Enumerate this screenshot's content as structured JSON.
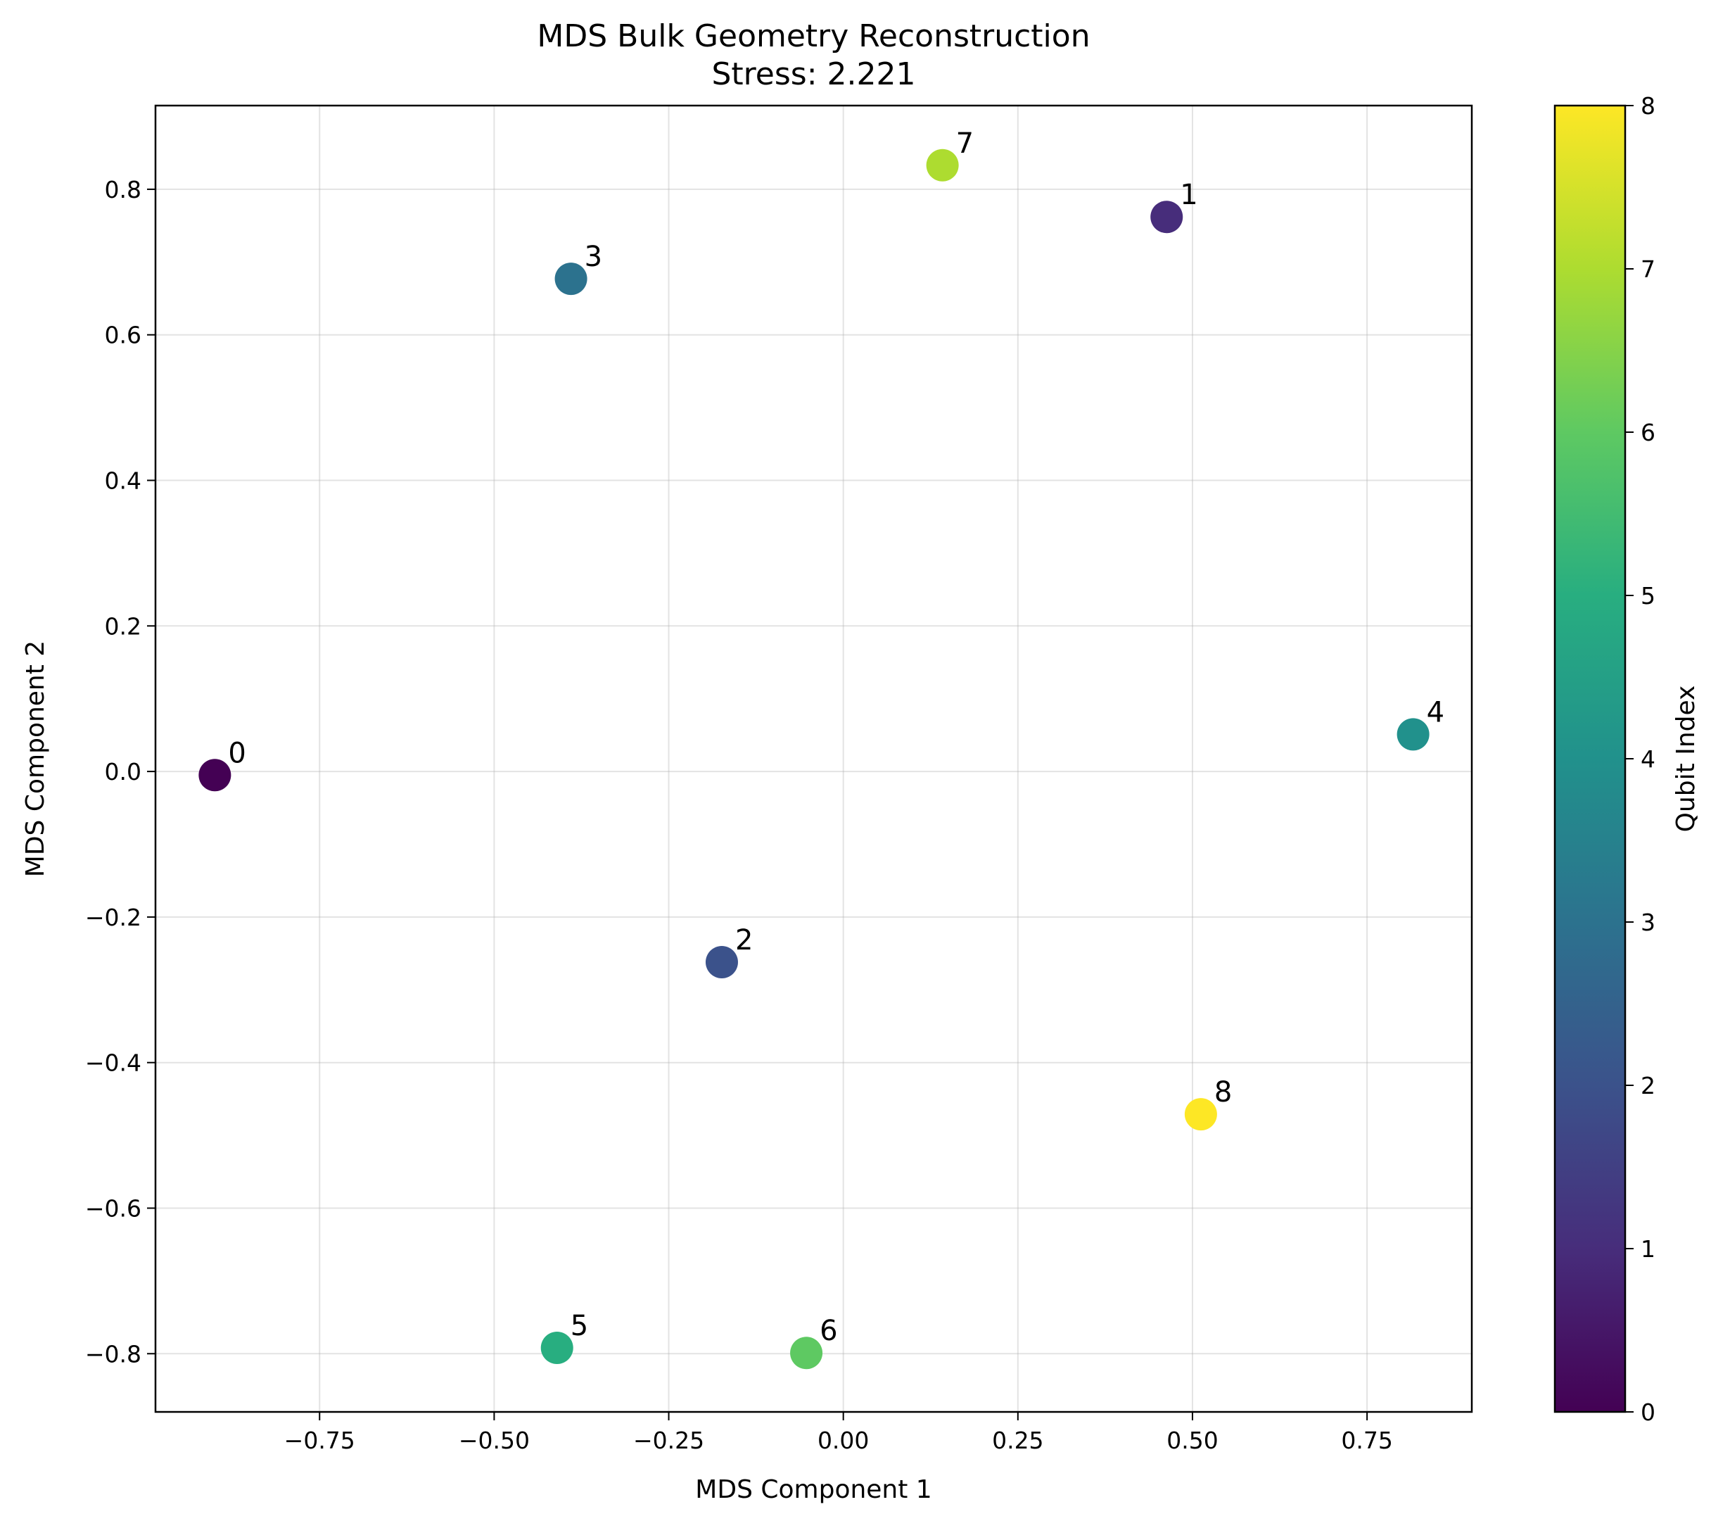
{
  "chart_data": {
    "type": "scatter",
    "title": "MDS Bulk Geometry Reconstruction",
    "subtitle": "Stress: 2.221",
    "xlabel": "MDS Component 1",
    "ylabel": "MDS Component 2",
    "xlim": [
      -0.985,
      0.9
    ],
    "ylim": [
      -0.88,
      0.915
    ],
    "xticks": [
      -0.75,
      -0.5,
      -0.25,
      0.0,
      0.25,
      0.5,
      0.75
    ],
    "xtick_labels": [
      "−0.75",
      "−0.50",
      "−0.25",
      "0.00",
      "0.25",
      "0.50",
      "0.75"
    ],
    "yticks": [
      -0.8,
      -0.6,
      -0.4,
      -0.2,
      0.0,
      0.2,
      0.4,
      0.6,
      0.8
    ],
    "ytick_labels": [
      "−0.8",
      "−0.6",
      "−0.4",
      "−0.2",
      "0.0",
      "0.2",
      "0.4",
      "0.6",
      "0.8"
    ],
    "grid": true,
    "colormap": "viridis",
    "points": [
      {
        "label": "0",
        "x": -0.9,
        "y": -0.005,
        "color": "#440154"
      },
      {
        "label": "1",
        "x": 0.463,
        "y": 0.762,
        "color": "#472d7b"
      },
      {
        "label": "2",
        "x": -0.174,
        "y": -0.262,
        "color": "#3b528b"
      },
      {
        "label": "3",
        "x": -0.39,
        "y": 0.677,
        "color": "#2c728e"
      },
      {
        "label": "4",
        "x": 0.816,
        "y": 0.051,
        "color": "#21918c"
      },
      {
        "label": "5",
        "x": -0.41,
        "y": -0.792,
        "color": "#28ae80"
      },
      {
        "label": "6",
        "x": -0.053,
        "y": -0.799,
        "color": "#5ec962"
      },
      {
        "label": "7",
        "x": 0.142,
        "y": 0.833,
        "color": "#addc30"
      },
      {
        "label": "8",
        "x": 0.512,
        "y": -0.471,
        "color": "#fde725"
      }
    ],
    "colorbar": {
      "label": "Qubit Index",
      "min": 0,
      "max": 8,
      "ticks": [
        0,
        1,
        2,
        3,
        4,
        5,
        6,
        7,
        8
      ],
      "tick_labels": [
        "0",
        "1",
        "2",
        "3",
        "4",
        "5",
        "6",
        "7",
        "8"
      ],
      "stops": [
        "#440154",
        "#472d7b",
        "#3b528b",
        "#2c728e",
        "#21918c",
        "#28ae80",
        "#5ec962",
        "#addc30",
        "#fde725"
      ]
    }
  }
}
